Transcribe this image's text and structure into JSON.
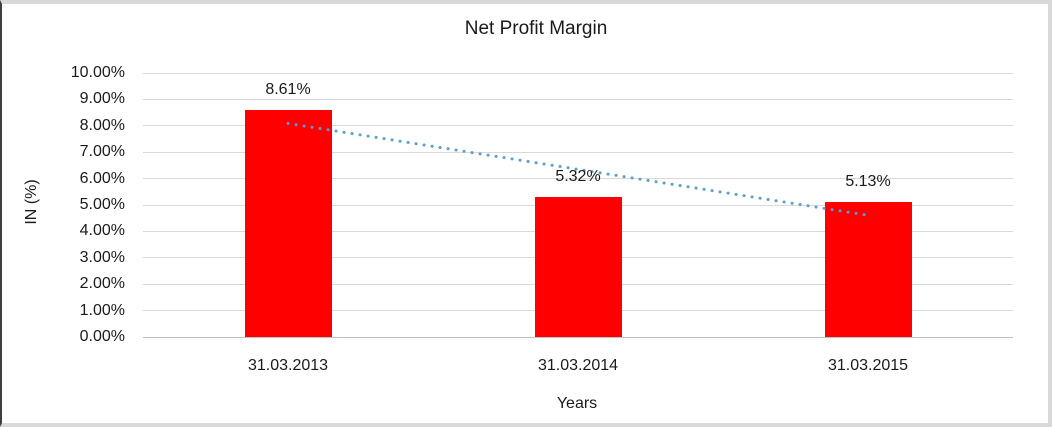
{
  "chart_data": {
    "type": "bar",
    "title": "Net Profit Margin",
    "xlabel": "Years",
    "ylabel": "IN (%)",
    "categories": [
      "31.03.2013",
      "31.03.2014",
      "31.03.2015"
    ],
    "values": [
      8.61,
      5.32,
      5.13
    ],
    "data_labels": [
      "8.61%",
      "5.32%",
      "5.13%"
    ],
    "ylim": [
      0,
      10
    ],
    "ytick_step": 1,
    "ytick_labels": [
      "0.00%",
      "1.00%",
      "2.00%",
      "3.00%",
      "4.00%",
      "5.00%",
      "6.00%",
      "7.00%",
      "8.00%",
      "9.00%",
      "10.00%"
    ],
    "grid": "horizontal",
    "legend": "none",
    "bar_color": "#FF0000",
    "trendline": {
      "type": "linear",
      "style": "dotted",
      "color": "#5B9BD5",
      "start_value": 8.09,
      "end_value": 4.61
    }
  }
}
